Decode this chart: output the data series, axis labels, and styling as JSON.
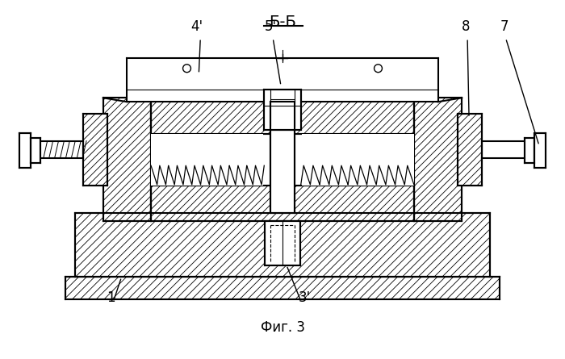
{
  "title": "Б-Б",
  "fig_label": "Фиг. 3",
  "bg_color": "#ffffff",
  "line_color": "#000000",
  "hatch_step": 9
}
